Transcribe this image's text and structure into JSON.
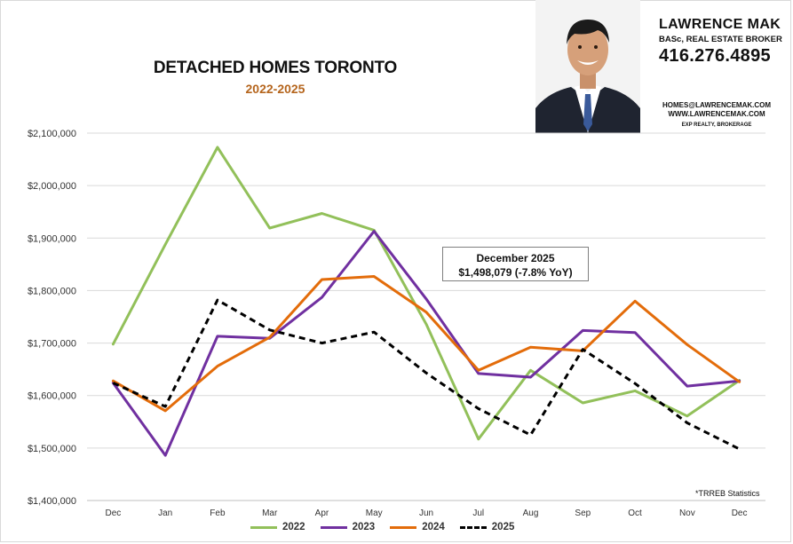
{
  "header": {
    "title": "DETACHED HOMES TORONTO",
    "subtitle": "2022-2025",
    "subtitle_color": "#b5651d"
  },
  "agent": {
    "name": "LAWRENCE MAK",
    "credentials": "BASc, REAL ESTATE BROKER",
    "phone": "416.276.4895",
    "email": "HOMES@LAWRENCEMAK.COM",
    "website": "WWW.LAWRENCEMAK.COM",
    "brokerage": "EXP REALTY, BROKERAGE"
  },
  "callout": {
    "line1": "December 2025",
    "line2": "$1,498,079 (-7.8% YoY)"
  },
  "source_note": "*TRREB Statistics",
  "chart_data": {
    "type": "line",
    "title": "DETACHED HOMES TORONTO",
    "subtitle": "2022-2025",
    "categories": [
      "Dec",
      "Jan",
      "Feb",
      "Mar",
      "Apr",
      "May",
      "Jun",
      "Jul",
      "Aug",
      "Sep",
      "Oct",
      "Nov",
      "Dec"
    ],
    "y_ticks": [
      "$1,400,000",
      "$1,500,000",
      "$1,600,000",
      "$1,700,000",
      "$1,800,000",
      "$1,900,000",
      "$2,000,000",
      "$2,100,000"
    ],
    "ylim": [
      1400000,
      2100000
    ],
    "grid": true,
    "legend_position": "bottom",
    "series": [
      {
        "name": "2022",
        "color": "#92c05a",
        "dashed": false,
        "values": [
          1698000,
          1888000,
          2073000,
          1919000,
          1947000,
          1915000,
          1736000,
          1517000,
          1648000,
          1586000,
          1609000,
          1561000,
          1629000
        ]
      },
      {
        "name": "2023",
        "color": "#7030a0",
        "dashed": false,
        "values": [
          1624000,
          1486000,
          1713000,
          1709000,
          1787000,
          1913000,
          1784000,
          1642000,
          1635000,
          1724000,
          1720000,
          1618000,
          1628000
        ]
      },
      {
        "name": "2024",
        "color": "#e36c0a",
        "dashed": false,
        "values": [
          1628000,
          1571000,
          1656000,
          1711000,
          1821000,
          1827000,
          1759000,
          1648000,
          1692000,
          1685000,
          1780000,
          1697000,
          1626000
        ]
      },
      {
        "name": "2025",
        "color": "#000000",
        "dashed": true,
        "values": [
          1624000,
          1579000,
          1782000,
          1725000,
          1700000,
          1721000,
          1643000,
          1575000,
          1525000,
          1688000,
          1623000,
          1548000,
          1498079
        ]
      }
    ]
  }
}
